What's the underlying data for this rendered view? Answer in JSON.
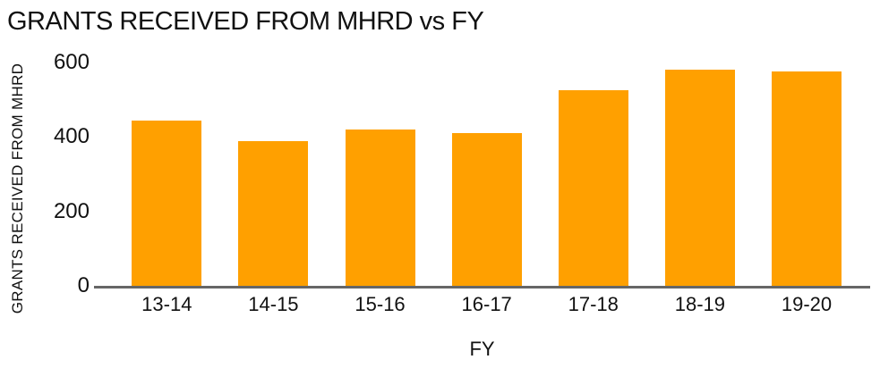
{
  "chart_data": {
    "type": "bar",
    "title": "GRANTS RECEIVED FROM MHRD vs FY",
    "xlabel": "FY",
    "ylabel": "GRANTS RECEIVED FROM MHRD",
    "categories": [
      "13-14",
      "14-15",
      "15-16",
      "16-17",
      "17-18",
      "18-19",
      "19-20"
    ],
    "values": [
      445,
      390,
      420,
      410,
      525,
      580,
      575
    ],
    "ylim": [
      0,
      600
    ],
    "yticks": [
      0,
      200,
      400,
      600
    ],
    "grid": false,
    "legend": false,
    "colors": {
      "bar": "#FFA000",
      "axis_line": "#666666",
      "text": "#111111",
      "background": "#FFFFFF"
    }
  }
}
